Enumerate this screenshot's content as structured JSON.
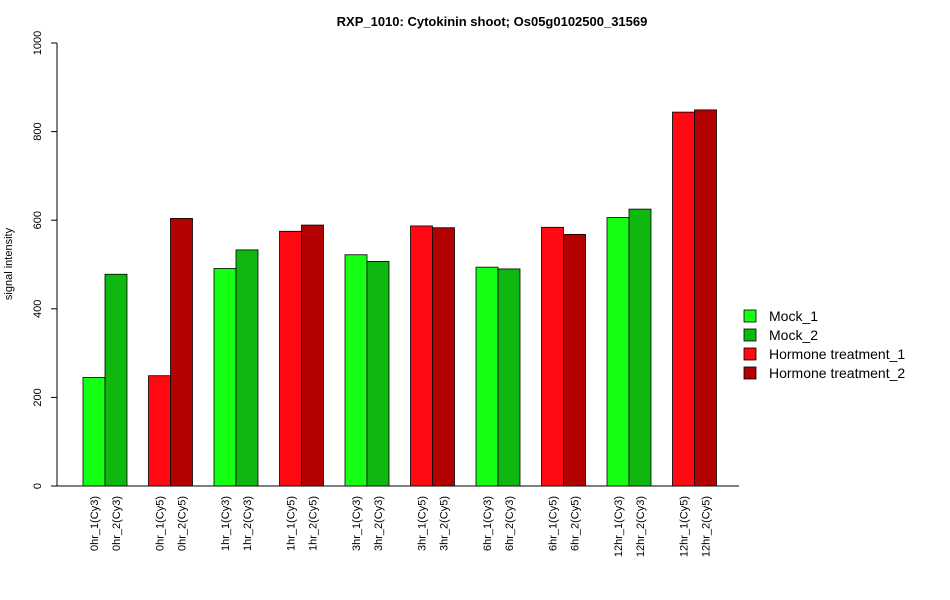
{
  "chart_data": {
    "type": "bar",
    "title": "RXP_1010: Cytokinin shoot; Os05g0102500_31569",
    "xlabel": "",
    "ylabel": "signal intensity",
    "ylim": [
      0,
      1000
    ],
    "yticks": [
      0,
      200,
      400,
      600,
      800,
      1000
    ],
    "grid": false,
    "legend_position": "right",
    "categories": [
      "0hr_1(Cy3)",
      "0hr_2(Cy3)",
      "0hr_1(Cy5)",
      "0hr_2(Cy5)",
      "1hr_1(Cy3)",
      "1hr_2(Cy3)",
      "1hr_1(Cy5)",
      "1hr_2(Cy5)",
      "3hr_1(Cy3)",
      "3hr_2(Cy3)",
      "3hr_1(Cy5)",
      "3hr_2(Cy5)",
      "6hr_1(Cy3)",
      "6hr_2(Cy3)",
      "6hr_1(Cy5)",
      "6hr_2(Cy5)",
      "12hr_1(Cy3)",
      "12hr_2(Cy3)",
      "12hr_1(Cy5)",
      "12hr_2(Cy5)"
    ],
    "values": [
      245,
      478,
      249,
      604,
      491,
      533,
      575,
      589,
      522,
      507,
      587,
      583,
      494,
      490,
      584,
      568,
      606,
      625,
      844,
      849
    ],
    "bar_series": [
      0,
      1,
      2,
      3,
      0,
      1,
      2,
      3,
      0,
      1,
      2,
      3,
      0,
      1,
      2,
      3,
      0,
      1,
      2,
      3
    ],
    "series": [
      {
        "name": "Mock_1",
        "color": "#14ff14"
      },
      {
        "name": "Mock_2",
        "color": "#0fb80f"
      },
      {
        "name": "Hormone treatment_1",
        "color": "#ff0a12"
      },
      {
        "name": "Hormone treatment_2",
        "color": "#b30000"
      }
    ]
  }
}
